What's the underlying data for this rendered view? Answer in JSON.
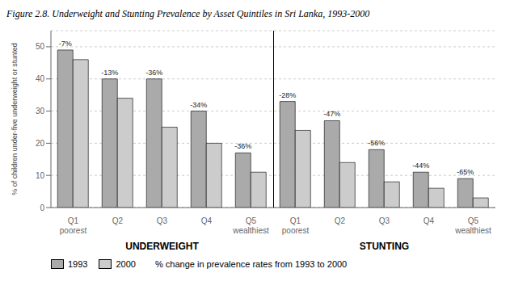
{
  "chart_data": {
    "type": "bar",
    "title": "Figure 2.8. Underweight and Stunting Prevalence by Asset Quintiles in Sri Lanka, 1993-2000",
    "y_label": "% of children under-five underweight or stunted",
    "categories": [
      "Q1\npoorest",
      "Q2",
      "Q3",
      "Q4",
      "Q5\nwealthiest",
      "Q1\npoorest",
      "Q2",
      "Q3",
      "Q4",
      "Q5\nwealthiest"
    ],
    "sections": [
      "UNDERWEIGHT",
      "STUNTING"
    ],
    "series": [
      {
        "name": "1993",
        "color": "#aaaaaa",
        "values": [
          49,
          40,
          40,
          30,
          17,
          33,
          27,
          18,
          11,
          9
        ],
        "annotations": [
          "-7%",
          "-13%",
          "-36%",
          "-34%",
          "-36%",
          "-28%",
          "-47%",
          "-56%",
          "-44%",
          "-65%"
        ]
      },
      {
        "name": "2000",
        "color": "#cccccc",
        "values": [
          46,
          34,
          25,
          20,
          11,
          24,
          14,
          8,
          6,
          3
        ]
      }
    ],
    "note": "% change in prevalence rates from 1993 to 2000",
    "ylim": [
      0,
      55
    ],
    "yticks": [
      0,
      10,
      20,
      30,
      40,
      50
    ],
    "grid": true,
    "legend": "bottom"
  }
}
